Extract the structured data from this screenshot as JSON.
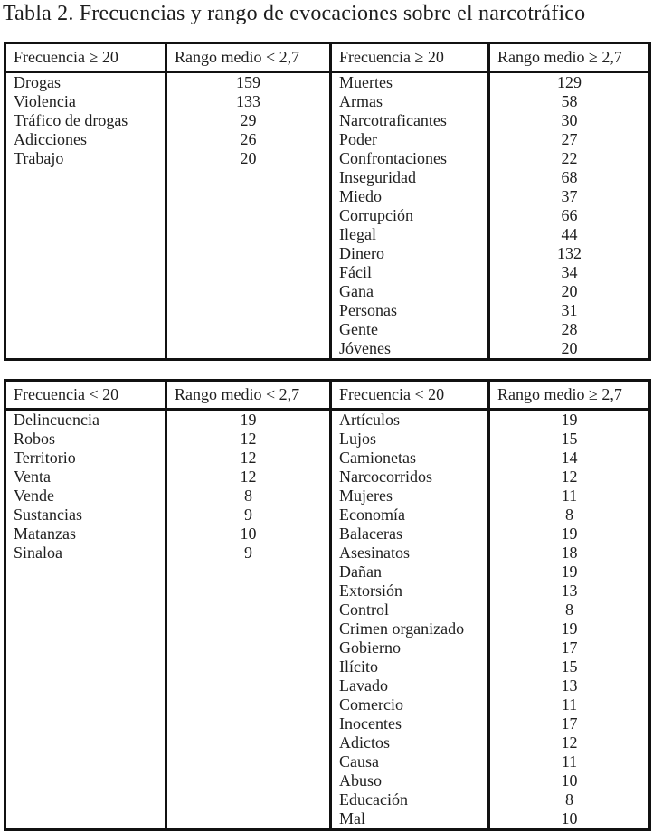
{
  "page": {
    "title": "Tabla 2. Frecuencias y rango de evocaciones sobre el narcotráfico"
  },
  "colors": {
    "background": "#ffffff",
    "text": "#1e1e1e",
    "border": "#111111"
  },
  "tables": [
    {
      "name": "high-frequency",
      "headers": [
        "Frecuencia ≥ 20",
        "Rango medio < 2,7",
        "Frecuencia ≥ 20",
        "Rango medio ≥ 2,7"
      ],
      "left": [
        {
          "word": "Drogas",
          "freq": "159"
        },
        {
          "word": "Violencia",
          "freq": "133"
        },
        {
          "word": "Tráfico de drogas",
          "freq": "29"
        },
        {
          "word": "Adicciones",
          "freq": "26"
        },
        {
          "word": "Trabajo",
          "freq": "20"
        }
      ],
      "right": [
        {
          "word": "Muertes",
          "freq": "129"
        },
        {
          "word": "Armas",
          "freq": "58"
        },
        {
          "word": "Narcotraficantes",
          "freq": "30"
        },
        {
          "word": "Poder",
          "freq": "27"
        },
        {
          "word": "Confrontaciones",
          "freq": "22"
        },
        {
          "word": "Inseguridad",
          "freq": "68"
        },
        {
          "word": "Miedo",
          "freq": "37"
        },
        {
          "word": "Corrupción",
          "freq": "66"
        },
        {
          "word": "Ilegal",
          "freq": "44"
        },
        {
          "word": "Dinero",
          "freq": "132"
        },
        {
          "word": "Fácil",
          "freq": "34"
        },
        {
          "word": "Gana",
          "freq": "20"
        },
        {
          "word": "Personas",
          "freq": "31"
        },
        {
          "word": "Gente",
          "freq": "28"
        },
        {
          "word": "Jóvenes",
          "freq": "20"
        }
      ]
    },
    {
      "name": "low-frequency",
      "headers": [
        "Frecuencia < 20",
        "Rango medio < 2,7",
        "Frecuencia < 20",
        "Rango medio ≥ 2,7"
      ],
      "left": [
        {
          "word": "Delincuencia",
          "freq": "19"
        },
        {
          "word": "Robos",
          "freq": "12"
        },
        {
          "word": "Territorio",
          "freq": "12"
        },
        {
          "word": "Venta",
          "freq": "12"
        },
        {
          "word": "Vende",
          "freq": "8"
        },
        {
          "word": "Sustancias",
          "freq": "9"
        },
        {
          "word": "Matanzas",
          "freq": "10"
        },
        {
          "word": "Sinaloa",
          "freq": "9"
        }
      ],
      "right": [
        {
          "word": "Artículos",
          "freq": "19"
        },
        {
          "word": "Lujos",
          "freq": "15"
        },
        {
          "word": "Camionetas",
          "freq": "14"
        },
        {
          "word": "Narcocorridos",
          "freq": "12"
        },
        {
          "word": "Mujeres",
          "freq": "11"
        },
        {
          "word": "Economía",
          "freq": "8"
        },
        {
          "word": "Balaceras",
          "freq": "19"
        },
        {
          "word": "Asesinatos",
          "freq": "18"
        },
        {
          "word": "Dañan",
          "freq": "19"
        },
        {
          "word": "Extorsión",
          "freq": "13"
        },
        {
          "word": "Control",
          "freq": "8"
        },
        {
          "word": "Crimen organizado",
          "freq": "19"
        },
        {
          "word": "Gobierno",
          "freq": "17"
        },
        {
          "word": "Ilícito",
          "freq": "15"
        },
        {
          "word": "Lavado",
          "freq": "13"
        },
        {
          "word": "Comercio",
          "freq": "11"
        },
        {
          "word": "Inocentes",
          "freq": "17"
        },
        {
          "word": "Adictos",
          "freq": "12"
        },
        {
          "word": "Causa",
          "freq": "11"
        },
        {
          "word": "Abuso",
          "freq": "10"
        },
        {
          "word": "Educación",
          "freq": "8"
        },
        {
          "word": "Mal",
          "freq": "10"
        }
      ]
    }
  ]
}
